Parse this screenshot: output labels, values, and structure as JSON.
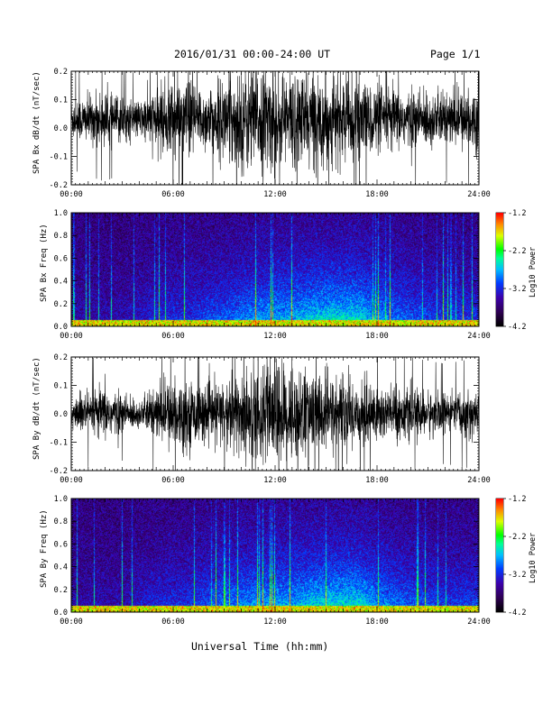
{
  "header": {
    "date_range": "2016/01/31  00:00-24:00 UT",
    "page": "Page 1/1"
  },
  "chart_data": [
    {
      "type": "line",
      "ylabel": "SPA Bx dB/dt (nT/sec)",
      "xlim": [
        0,
        24
      ],
      "ylim": [
        -0.2,
        0.2
      ],
      "x_tick_labels": [
        "00:00",
        "06:00",
        "12:00",
        "18:00",
        "24:00"
      ],
      "y_tick_labels": [
        "0.2",
        "0.1",
        "0.0",
        "-0.1",
        "-0.2"
      ],
      "y_tick_values": [
        0.2,
        0.1,
        0.0,
        -0.1,
        -0.2
      ],
      "baseline": 0.03,
      "envelope": [
        {
          "x": 0,
          "amp": 0.08
        },
        {
          "x": 2,
          "amp": 0.1
        },
        {
          "x": 4,
          "amp": 0.07
        },
        {
          "x": 5,
          "amp": 0.12
        },
        {
          "x": 6,
          "amp": 0.16
        },
        {
          "x": 8,
          "amp": 0.12
        },
        {
          "x": 9,
          "amp": 0.16
        },
        {
          "x": 10,
          "amp": 0.2
        },
        {
          "x": 12,
          "amp": 0.2
        },
        {
          "x": 14,
          "amp": 0.18
        },
        {
          "x": 16,
          "amp": 0.16
        },
        {
          "x": 18,
          "amp": 0.13
        },
        {
          "x": 20,
          "amp": 0.11
        },
        {
          "x": 22,
          "amp": 0.1
        },
        {
          "x": 24,
          "amp": 0.12
        }
      ]
    },
    {
      "type": "heatmap",
      "ylabel": "SPA Bx Freq (Hz)",
      "xlim": [
        0,
        24
      ],
      "ylim": [
        0,
        1.0
      ],
      "x_tick_labels": [
        "00:00",
        "06:00",
        "12:00",
        "18:00",
        "24:00"
      ],
      "y_tick_labels": [
        "1.0",
        "0.8",
        "0.6",
        "0.4",
        "0.2",
        "0.0"
      ],
      "y_tick_values": [
        1.0,
        0.8,
        0.6,
        0.4,
        0.2,
        0.0
      ],
      "colorbar": {
        "label": "Log10 Power",
        "range": [
          -4.2,
          -1.2
        ],
        "tick_labels": [
          "-1.2",
          "-2.2",
          "-3.2",
          "-4.2"
        ],
        "tick_values": [
          -1.2,
          -2.2,
          -3.2,
          -4.2
        ]
      },
      "activity": [
        {
          "x": 0,
          "level": 0.15
        },
        {
          "x": 3,
          "level": 0.15
        },
        {
          "x": 5,
          "level": 0.3
        },
        {
          "x": 7,
          "level": 0.35
        },
        {
          "x": 9,
          "level": 0.45
        },
        {
          "x": 11,
          "level": 0.6
        },
        {
          "x": 13,
          "level": 0.65
        },
        {
          "x": 15,
          "level": 0.75
        },
        {
          "x": 17,
          "level": 0.75
        },
        {
          "x": 18,
          "level": 0.6
        },
        {
          "x": 20,
          "level": 0.45
        },
        {
          "x": 22,
          "level": 0.35
        },
        {
          "x": 24,
          "level": 0.35
        }
      ]
    },
    {
      "type": "line",
      "ylabel": "SPA By dB/dt (nT/sec)",
      "xlim": [
        0,
        24
      ],
      "ylim": [
        -0.2,
        0.2
      ],
      "x_tick_labels": [
        "00:00",
        "06:00",
        "12:00",
        "18:00",
        "24:00"
      ],
      "y_tick_labels": [
        "0.2",
        "0.1",
        "0.0",
        "-0.1",
        "-0.2"
      ],
      "y_tick_values": [
        0.2,
        0.1,
        0.0,
        -0.1,
        -0.2
      ],
      "baseline": 0.0,
      "envelope": [
        {
          "x": 0,
          "amp": 0.07
        },
        {
          "x": 2,
          "amp": 0.1
        },
        {
          "x": 4,
          "amp": 0.05
        },
        {
          "x": 5,
          "amp": 0.1
        },
        {
          "x": 6,
          "amp": 0.14
        },
        {
          "x": 8,
          "amp": 0.1
        },
        {
          "x": 9,
          "amp": 0.13
        },
        {
          "x": 10,
          "amp": 0.18
        },
        {
          "x": 12,
          "amp": 0.2
        },
        {
          "x": 14,
          "amp": 0.17
        },
        {
          "x": 16,
          "amp": 0.14
        },
        {
          "x": 18,
          "amp": 0.12
        },
        {
          "x": 20,
          "amp": 0.09
        },
        {
          "x": 22,
          "amp": 0.08
        },
        {
          "x": 24,
          "amp": 0.09
        }
      ]
    },
    {
      "type": "heatmap",
      "ylabel": "SPA By Freq (Hz)",
      "xlim": [
        0,
        24
      ],
      "ylim": [
        0,
        1.0
      ],
      "x_tick_labels": [
        "00:00",
        "06:00",
        "12:00",
        "18:00",
        "24:00"
      ],
      "y_tick_labels": [
        "1.0",
        "0.8",
        "0.6",
        "0.4",
        "0.2",
        "0.0"
      ],
      "y_tick_values": [
        1.0,
        0.8,
        0.6,
        0.4,
        0.2,
        0.0
      ],
      "colorbar": {
        "label": "Log10 Power",
        "range": [
          -4.2,
          -1.2
        ],
        "tick_labels": [
          "-1.2",
          "-2.2",
          "-3.2",
          "-4.2"
        ],
        "tick_values": [
          -1.2,
          -2.2,
          -3.2,
          -4.2
        ]
      },
      "activity": [
        {
          "x": 0,
          "level": 0.15
        },
        {
          "x": 3,
          "level": 0.15
        },
        {
          "x": 5,
          "level": 0.3
        },
        {
          "x": 7,
          "level": 0.35
        },
        {
          "x": 9,
          "level": 0.5
        },
        {
          "x": 11,
          "level": 0.6
        },
        {
          "x": 13,
          "level": 0.65
        },
        {
          "x": 15,
          "level": 0.75
        },
        {
          "x": 17,
          "level": 0.75
        },
        {
          "x": 18,
          "level": 0.6
        },
        {
          "x": 20,
          "level": 0.45
        },
        {
          "x": 22,
          "level": 0.35
        },
        {
          "x": 24,
          "level": 0.4
        }
      ]
    }
  ],
  "footer": {
    "xlabel": "Universal Time (hh:mm)"
  }
}
